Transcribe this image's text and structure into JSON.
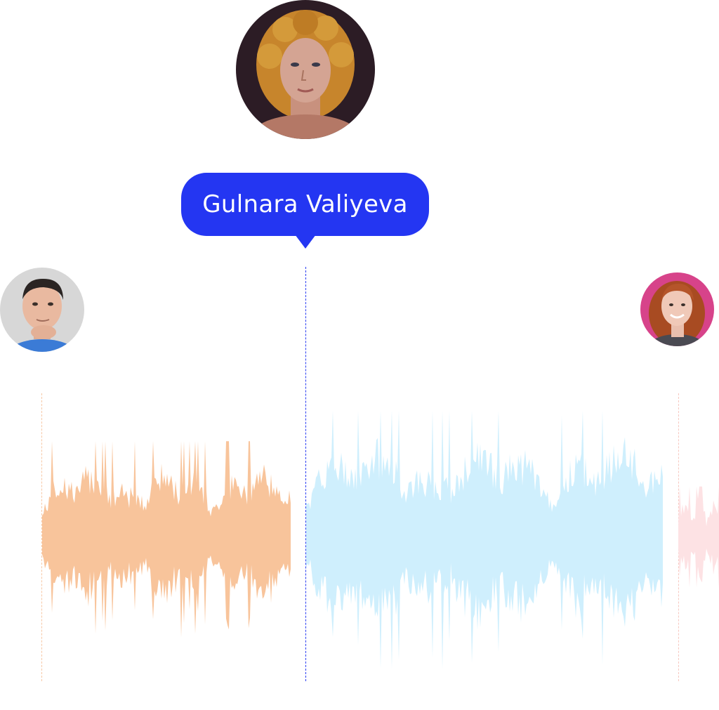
{
  "speakers": [
    {
      "id": "left",
      "avatar_icon": "man-thinking-avatar",
      "colors": {
        "wave": "#f8c49b",
        "divider": "#f7c8a5",
        "shirt": "#3b7bd6",
        "skin": "#e9b9a0",
        "hair": "#2b2523",
        "bg": "#d7d7d7"
      }
    },
    {
      "id": "center",
      "avatar_icon": "woman-curly-hair-avatar",
      "colors": {
        "wave": "#cfeffd",
        "divider": "#2a3df2",
        "skin": "#d2a090",
        "hair": "#c7852c",
        "bg": "#2c1c25"
      }
    },
    {
      "id": "right",
      "avatar_icon": "woman-red-hair-avatar",
      "colors": {
        "wave": "#fde2e4",
        "divider": "#f7c8c0",
        "skin": "#f0c9b8",
        "hair": "#a84b22",
        "bg": "#d7438a"
      }
    }
  ],
  "tooltip": {
    "name": "Gulnara Valiyeva",
    "bg_color": "#2436f2",
    "text_color": "#ffffff"
  },
  "waveform": {
    "segments": [
      {
        "speaker": "left",
        "color": "#f8c49b",
        "peak_amplitude": 0.72
      },
      {
        "speaker": "center",
        "color": "#cfeffd",
        "peak_amplitude": 0.95
      },
      {
        "speaker": "right",
        "color": "#fde2e4",
        "peak_amplitude": 0.38
      }
    ]
  }
}
